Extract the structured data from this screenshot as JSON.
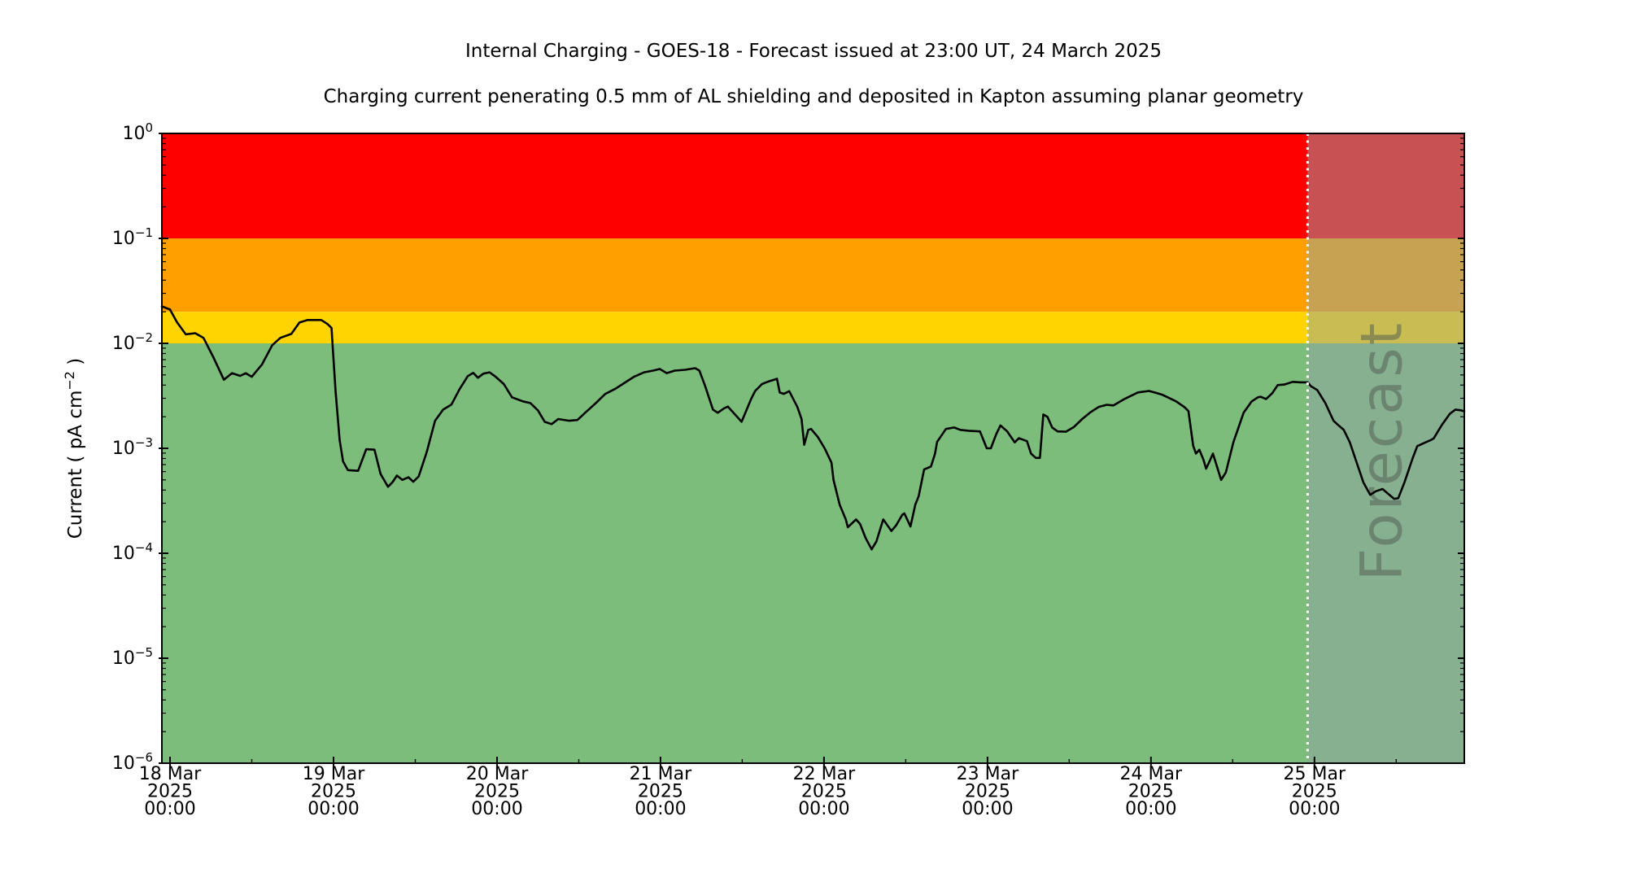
{
  "title": "Internal Charging - GOES-18 - Forecast issued at 23:00 UT, 24 March 2025",
  "subtitle": "Charging current penerating 0.5 mm of AL shielding and deposited in Kapton assuming planar geometry",
  "chart_data": {
    "type": "line",
    "title": "Internal Charging - GOES-18 - Forecast issued at 23:00 UT, 24 March 2025",
    "subtitle": "Charging current penerating 0.5 mm of AL shielding and deposited in Kapton assuming planar geometry",
    "xlabel": "",
    "ylabel": {
      "text_before_sup": "Current ( pA cm",
      "sup": "−2",
      "text_after_sup": " )"
    },
    "grid": false,
    "legend": "none",
    "x_axis": {
      "start_label": "18 Mar 2025 00:00",
      "unit_hours_since_start": true,
      "min_hours": -1.2,
      "max_hours": 190,
      "major_ticks": [
        {
          "hours": 0,
          "lines": [
            "18 Mar",
            "2025",
            "00:00"
          ]
        },
        {
          "hours": 24,
          "lines": [
            "19 Mar",
            "2025",
            "00:00"
          ]
        },
        {
          "hours": 48,
          "lines": [
            "20 Mar",
            "2025",
            "00:00"
          ]
        },
        {
          "hours": 72,
          "lines": [
            "21 Mar",
            "2025",
            "00:00"
          ]
        },
        {
          "hours": 96,
          "lines": [
            "22 Mar",
            "2025",
            "00:00"
          ]
        },
        {
          "hours": 120,
          "lines": [
            "23 Mar",
            "2025",
            "00:00"
          ]
        },
        {
          "hours": 144,
          "lines": [
            "24 Mar",
            "2025",
            "00:00"
          ]
        },
        {
          "hours": 168,
          "lines": [
            "25 Mar",
            "2025",
            "00:00"
          ]
        }
      ],
      "minor_tick_hours": [
        12,
        36,
        60,
        84,
        108,
        132,
        156,
        180
      ]
    },
    "y_axis": {
      "scale": "log",
      "min": 1e-06,
      "max": 1,
      "tick_exponents": [
        0,
        -1,
        -2,
        -3,
        -4,
        -5,
        -6
      ]
    },
    "zones": [
      {
        "label": "red",
        "min": 0.1,
        "max": 1,
        "color": "#ff0000"
      },
      {
        "label": "orange",
        "min": 0.02,
        "max": 0.1,
        "color": "#ffa000"
      },
      {
        "label": "yellow",
        "min": 0.01,
        "max": 0.02,
        "color": "#ffd400"
      },
      {
        "label": "green",
        "min": 1e-06,
        "max": 0.01,
        "color": "#7cbd7c"
      }
    ],
    "forecast": {
      "divider_hours": 167,
      "label": "Forecast",
      "overlay_color": "rgba(145,163,166,0.5)",
      "divider_color": "#ffffff",
      "label_color": "rgba(80,92,82,0.52)"
    },
    "series": [
      {
        "name": "charging-current",
        "color": "#000000",
        "width": 2.6,
        "points": [
          [
            -1.2,
            0.0225
          ],
          [
            0,
            0.021
          ],
          [
            1,
            0.016
          ],
          [
            2.3,
            0.0122
          ],
          [
            3.7,
            0.0125
          ],
          [
            4.9,
            0.0113
          ],
          [
            6.3,
            0.0075
          ],
          [
            7.9,
            0.0045
          ],
          [
            9.1,
            0.0052
          ],
          [
            10.3,
            0.0049
          ],
          [
            11.1,
            0.0052
          ],
          [
            12,
            0.0048
          ],
          [
            13.5,
            0.0063
          ],
          [
            15,
            0.0096
          ],
          [
            16.2,
            0.0113
          ],
          [
            17.8,
            0.0123
          ],
          [
            19,
            0.0158
          ],
          [
            20.2,
            0.0167
          ],
          [
            22.2,
            0.0167
          ],
          [
            23.1,
            0.0153
          ],
          [
            23.7,
            0.014
          ],
          [
            24.3,
            0.0035
          ],
          [
            24.9,
            0.0012
          ],
          [
            25.4,
            0.00075
          ],
          [
            26.1,
            0.00062
          ],
          [
            27.6,
            0.00061
          ],
          [
            28.8,
            0.00098
          ],
          [
            30,
            0.00097
          ],
          [
            30.9,
            0.00057
          ],
          [
            32,
            0.00043
          ],
          [
            32.7,
            0.00048
          ],
          [
            33.3,
            0.00055
          ],
          [
            34.1,
            0.0005
          ],
          [
            35,
            0.00053
          ],
          [
            35.7,
            0.00048
          ],
          [
            36.5,
            0.00054
          ],
          [
            37.7,
            0.00093
          ],
          [
            38.9,
            0.00183
          ],
          [
            40.1,
            0.00234
          ],
          [
            41.3,
            0.00261
          ],
          [
            42.5,
            0.00366
          ],
          [
            43.7,
            0.00487
          ],
          [
            44.5,
            0.00524
          ],
          [
            45.2,
            0.0047
          ],
          [
            46,
            0.00515
          ],
          [
            46.9,
            0.0053
          ],
          [
            47.8,
            0.0048
          ],
          [
            49,
            0.0041
          ],
          [
            50.2,
            0.00306
          ],
          [
            51.8,
            0.0028
          ],
          [
            52.9,
            0.0027
          ],
          [
            54,
            0.0023
          ],
          [
            55,
            0.00179
          ],
          [
            56,
            0.0017
          ],
          [
            57,
            0.0019
          ],
          [
            58.6,
            0.00183
          ],
          [
            59.8,
            0.00186
          ],
          [
            61.2,
            0.00226
          ],
          [
            62.5,
            0.0027
          ],
          [
            63.9,
            0.0033
          ],
          [
            65.4,
            0.0037
          ],
          [
            66.7,
            0.0042
          ],
          [
            68.1,
            0.0048
          ],
          [
            69.6,
            0.0053
          ],
          [
            70.9,
            0.0055
          ],
          [
            71.9,
            0.0057
          ],
          [
            72.9,
            0.0052
          ],
          [
            74.1,
            0.0055
          ],
          [
            75.6,
            0.0056
          ],
          [
            77.1,
            0.0058
          ],
          [
            77.7,
            0.0055
          ],
          [
            78.5,
            0.004
          ],
          [
            79.7,
            0.00234
          ],
          [
            80.4,
            0.00218
          ],
          [
            81.3,
            0.0024
          ],
          [
            81.9,
            0.0025
          ],
          [
            83.9,
            0.00179
          ],
          [
            85.3,
            0.00295
          ],
          [
            85.9,
            0.00352
          ],
          [
            86.9,
            0.0041
          ],
          [
            87.7,
            0.0043
          ],
          [
            88.9,
            0.00455
          ],
          [
            89.1,
            0.0046
          ],
          [
            89.5,
            0.0034
          ],
          [
            90.1,
            0.0033
          ],
          [
            90.9,
            0.0035
          ],
          [
            92.1,
            0.00247
          ],
          [
            92.7,
            0.0019
          ],
          [
            92.9,
            0.00145
          ],
          [
            93.1,
            0.00108
          ],
          [
            93.7,
            0.0015
          ],
          [
            94.1,
            0.00153
          ],
          [
            95.1,
            0.00128
          ],
          [
            96.1,
            0.001
          ],
          [
            97.1,
            0.00073
          ],
          [
            97.4,
            0.0005
          ],
          [
            98.3,
            0.00029
          ],
          [
            99.2,
            0.00021
          ],
          [
            99.5,
            0.000177
          ],
          [
            100.7,
            0.00021
          ],
          [
            101.3,
            0.00019
          ],
          [
            102.1,
            0.00014
          ],
          [
            103,
            0.000109
          ],
          [
            103.7,
            0.00013
          ],
          [
            104.7,
            0.00021
          ],
          [
            105.3,
            0.000185
          ],
          [
            105.9,
            0.000163
          ],
          [
            106.6,
            0.000185
          ],
          [
            107.5,
            0.000233
          ],
          [
            107.8,
            0.00024
          ],
          [
            108.7,
            0.00018
          ],
          [
            109.4,
            0.00029
          ],
          [
            109.9,
            0.00035
          ],
          [
            110.7,
            0.00063
          ],
          [
            111.7,
            0.00067
          ],
          [
            112.3,
            0.00089
          ],
          [
            112.6,
            0.00115
          ],
          [
            113.9,
            0.00153
          ],
          [
            115.1,
            0.00158
          ],
          [
            116,
            0.0015
          ],
          [
            117.2,
            0.00147
          ],
          [
            118.9,
            0.00145
          ],
          [
            119.9,
            0.001
          ],
          [
            120.5,
            0.001
          ],
          [
            121.3,
            0.00137
          ],
          [
            121.9,
            0.00165
          ],
          [
            122.9,
            0.00145
          ],
          [
            124,
            0.00114
          ],
          [
            124.6,
            0.00125
          ],
          [
            125.8,
            0.00117
          ],
          [
            126.4,
            0.00089
          ],
          [
            127.1,
            0.00081
          ],
          [
            127.7,
            0.00081
          ],
          [
            128.2,
            0.0021
          ],
          [
            128.8,
            0.002
          ],
          [
            129.5,
            0.00158
          ],
          [
            130.3,
            0.00145
          ],
          [
            131.5,
            0.00144
          ],
          [
            132.7,
            0.0016
          ],
          [
            133.9,
            0.0019
          ],
          [
            135.1,
            0.0022
          ],
          [
            136.3,
            0.00247
          ],
          [
            137.5,
            0.0026
          ],
          [
            138.5,
            0.00256
          ],
          [
            140.1,
            0.00295
          ],
          [
            142.1,
            0.00341
          ],
          [
            143.7,
            0.00352
          ],
          [
            144.5,
            0.00341
          ],
          [
            145.7,
            0.00323
          ],
          [
            147.7,
            0.0028
          ],
          [
            148.9,
            0.00247
          ],
          [
            149.5,
            0.00226
          ],
          [
            150.2,
            0.00106
          ],
          [
            150.6,
            0.00089
          ],
          [
            151.1,
            0.00097
          ],
          [
            151.7,
            0.00078
          ],
          [
            152.1,
            0.00064
          ],
          [
            152.6,
            0.00075
          ],
          [
            153.1,
            0.00089
          ],
          [
            154.3,
            0.0005
          ],
          [
            155,
            0.00059
          ],
          [
            156.1,
            0.00114
          ],
          [
            157.6,
            0.00218
          ],
          [
            158.8,
            0.0028
          ],
          [
            159.7,
            0.00306
          ],
          [
            160.1,
            0.0031
          ],
          [
            160.9,
            0.00295
          ],
          [
            161.8,
            0.00335
          ],
          [
            162.6,
            0.004
          ],
          [
            163.6,
            0.00405
          ],
          [
            164.8,
            0.0043
          ],
          [
            166,
            0.00425
          ],
          [
            167,
            0.00425
          ],
          [
            167.5,
            0.0039
          ],
          [
            168.4,
            0.0036
          ],
          [
            169.6,
            0.0027
          ],
          [
            170.8,
            0.00183
          ],
          [
            171.6,
            0.00164
          ],
          [
            172.3,
            0.0015
          ],
          [
            173.2,
            0.00114
          ],
          [
            174,
            0.0008
          ],
          [
            175.2,
            0.00047
          ],
          [
            176.2,
            0.00036
          ],
          [
            177,
            0.00039
          ],
          [
            178,
            0.00041
          ],
          [
            178.8,
            0.00037
          ],
          [
            179.7,
            0.00033
          ],
          [
            180.3,
            0.000335
          ],
          [
            181.2,
            0.00047
          ],
          [
            182.4,
            0.0008
          ],
          [
            183.1,
            0.00105
          ],
          [
            184.3,
            0.00114
          ],
          [
            185.1,
            0.0012
          ],
          [
            185.5,
            0.00124
          ],
          [
            186.7,
            0.00167
          ],
          [
            187.9,
            0.00214
          ],
          [
            188.7,
            0.00234
          ],
          [
            189.5,
            0.0023
          ],
          [
            190,
            0.00225
          ]
        ]
      }
    ]
  }
}
